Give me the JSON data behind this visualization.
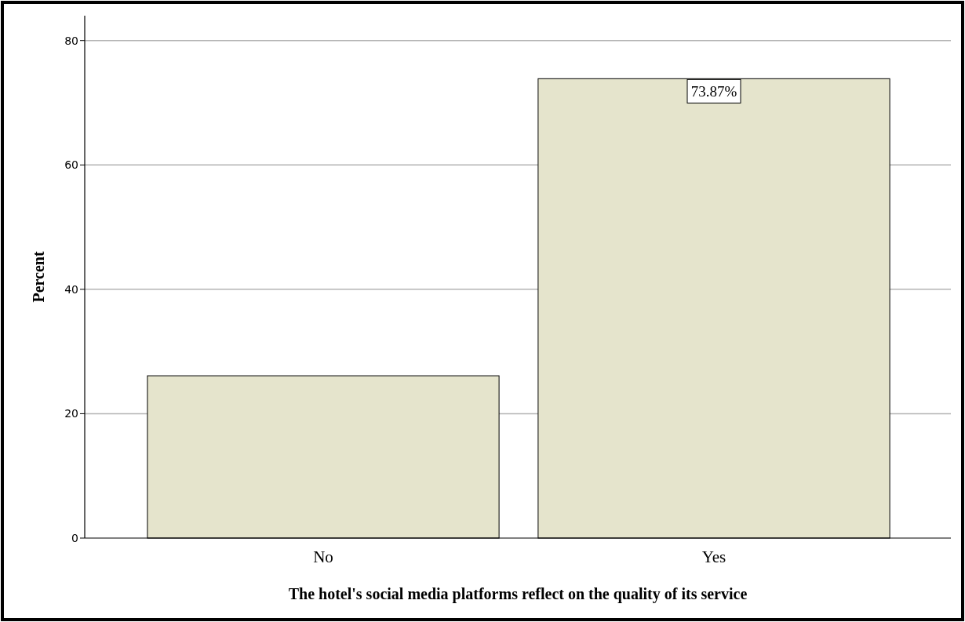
{
  "chart_data": {
    "type": "bar",
    "xlabel": "The hotel's social media platforms reflect on the quality of its service",
    "ylabel": "Percent",
    "categories": [
      "No",
      "Yes"
    ],
    "values": [
      26.1,
      73.87
    ],
    "value_labels": [
      null,
      "73.87%"
    ],
    "color": "#e5e4cc",
    "ylim": [
      0,
      84
    ],
    "yticks": [
      0,
      20,
      40,
      60,
      80
    ],
    "grid": "y"
  }
}
